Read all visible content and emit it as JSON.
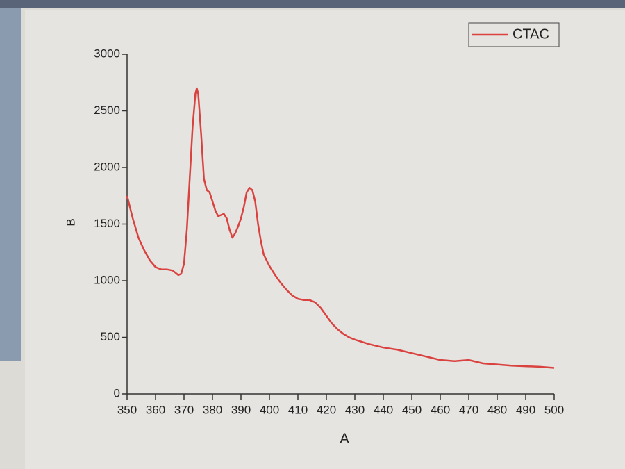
{
  "chart_data": {
    "type": "line",
    "x_label": "A",
    "y_label": "B",
    "x": [
      350,
      352,
      354,
      356,
      358,
      360,
      362,
      364,
      366,
      368,
      369,
      370,
      371,
      372,
      373,
      374,
      374.5,
      375,
      376,
      377,
      378,
      379,
      380,
      381,
      382,
      383,
      384,
      385,
      386,
      387,
      388,
      389,
      390,
      391,
      392,
      393,
      394,
      395,
      396,
      397,
      398,
      400,
      402,
      404,
      406,
      408,
      410,
      412,
      414,
      416,
      418,
      420,
      422,
      424,
      426,
      428,
      430,
      435,
      440,
      445,
      450,
      455,
      460,
      465,
      470,
      475,
      480,
      485,
      490,
      495,
      500
    ],
    "series": [
      {
        "name": "CTAC",
        "color": "#d9423f",
        "values": [
          1750,
          1550,
          1380,
          1270,
          1180,
          1120,
          1100,
          1100,
          1090,
          1050,
          1060,
          1150,
          1450,
          1900,
          2350,
          2650,
          2700,
          2650,
          2300,
          1900,
          1800,
          1780,
          1700,
          1620,
          1570,
          1580,
          1590,
          1550,
          1450,
          1380,
          1420,
          1480,
          1550,
          1650,
          1780,
          1820,
          1800,
          1700,
          1500,
          1350,
          1230,
          1130,
          1050,
          980,
          920,
          870,
          840,
          830,
          830,
          810,
          760,
          690,
          620,
          570,
          530,
          500,
          480,
          440,
          410,
          390,
          360,
          330,
          300,
          290,
          300,
          270,
          260,
          250,
          245,
          240,
          230
        ]
      }
    ],
    "xlim": [
      350,
      500
    ],
    "xticks": [
      350,
      360,
      370,
      380,
      390,
      400,
      410,
      420,
      430,
      440,
      450,
      460,
      470,
      480,
      490,
      500
    ],
    "ylim": [
      0,
      3000
    ],
    "yticks": [
      0,
      500,
      1000,
      1500,
      2000,
      2500,
      3000
    ],
    "legend": "top-right"
  }
}
